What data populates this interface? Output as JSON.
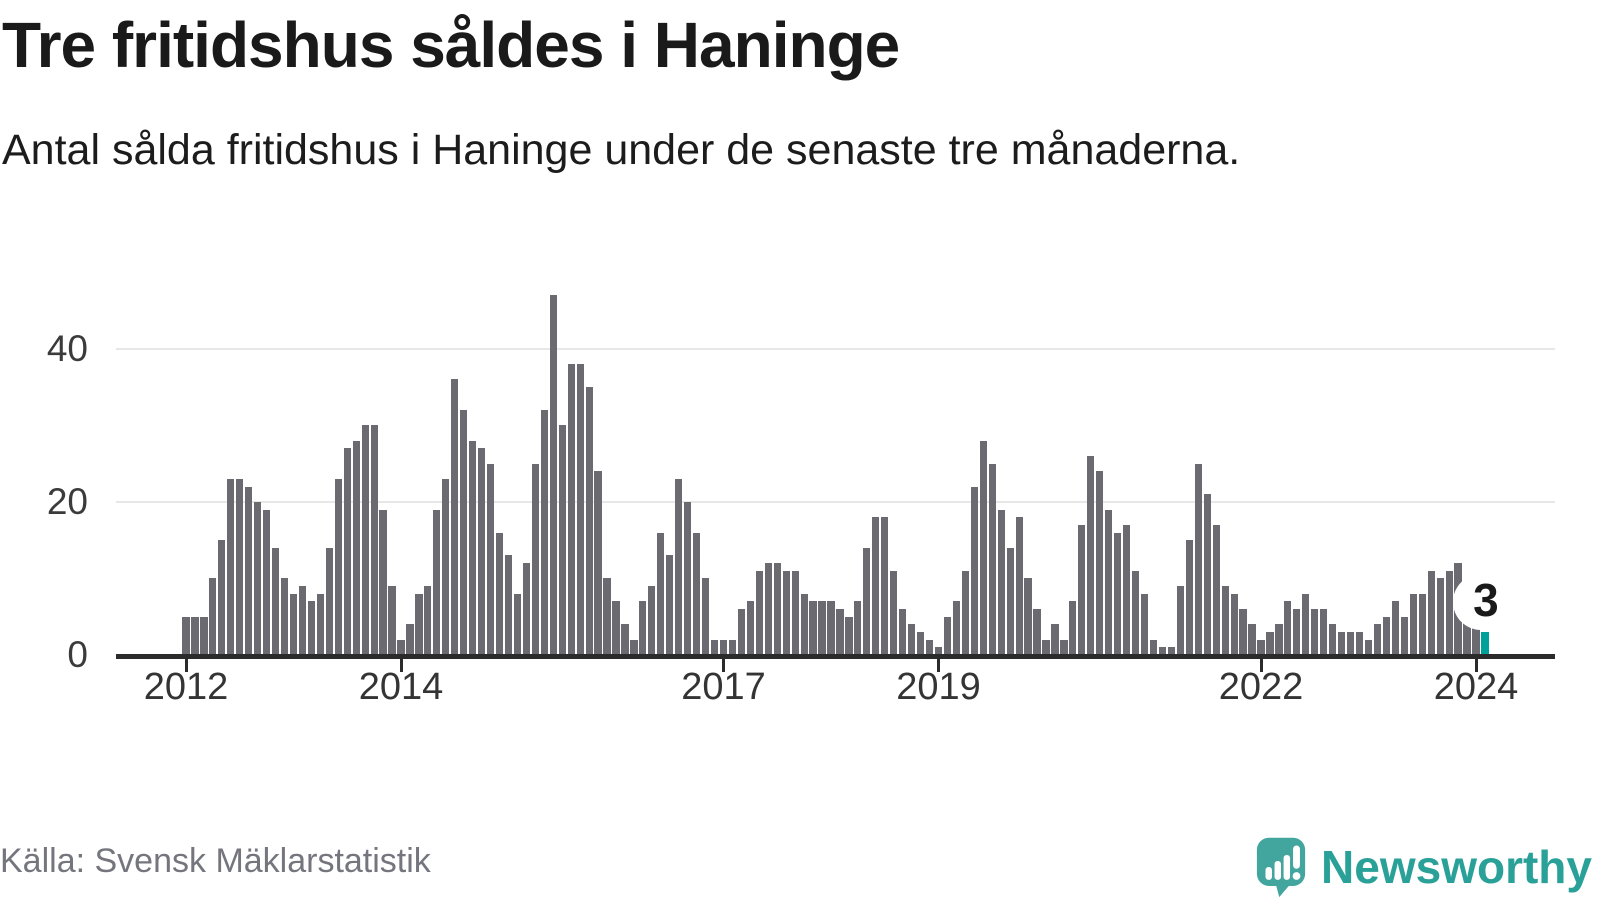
{
  "header": {
    "title": "Tre fritidshus såldes i Haninge",
    "subtitle": "Antal sålda fritidshus i Haninge under de senaste tre månaderna."
  },
  "footer": {
    "source": "Källa: Svensk Mäklarstatistik",
    "logo_text": "Newsworthy"
  },
  "colors": {
    "bar": "#6a6a70",
    "highlight_bar": "#00a19b",
    "gridline": "#e7e7e7",
    "axis": "#2b2b2b",
    "title_text": "#1a1a1a",
    "source_text": "#75757e",
    "logo_teal": "#2aa198",
    "background": "#ffffff"
  },
  "chart_data": {
    "type": "bar",
    "title": "Tre fritidshus såldes i Haninge",
    "subtitle": "Antal sålda fritidshus i Haninge under de senaste tre månaderna.",
    "x_unit": "month",
    "x_start": "2012-01",
    "x_end": "2024-02",
    "y_axis": {
      "label": "",
      "ticks": [
        0,
        20,
        40
      ],
      "range": [
        0,
        47
      ]
    },
    "x_axis": {
      "tick_years": [
        2012,
        2014,
        2017,
        2019,
        2022,
        2024
      ]
    },
    "grid": "horizontal",
    "legend": "none",
    "series_by_year": [
      {
        "year": 2012,
        "values": [
          5,
          5,
          5,
          10,
          15,
          23,
          23,
          22,
          20,
          19,
          14,
          10
        ]
      },
      {
        "year": 2013,
        "values": [
          8,
          9,
          7,
          8,
          14,
          23,
          27,
          28,
          30,
          30,
          19,
          9
        ]
      },
      {
        "year": 2014,
        "values": [
          2,
          4,
          8,
          9,
          19,
          23,
          36,
          32,
          28,
          27,
          25,
          16
        ]
      },
      {
        "year": 2015,
        "values": [
          13,
          8,
          12,
          25,
          32,
          47,
          30,
          38,
          38,
          35,
          24,
          10
        ]
      },
      {
        "year": 2016,
        "values": [
          7,
          4,
          2,
          7,
          9,
          16,
          13,
          23,
          20,
          16,
          10,
          2
        ]
      },
      {
        "year": 2017,
        "values": [
          2,
          2,
          6,
          7,
          11,
          12,
          12,
          11,
          11,
          8,
          7,
          7
        ]
      },
      {
        "year": 2018,
        "values": [
          7,
          6,
          5,
          7,
          14,
          18,
          18,
          11,
          6,
          4,
          3,
          2
        ]
      },
      {
        "year": 2019,
        "values": [
          1,
          5,
          7,
          11,
          22,
          28,
          25,
          19,
          14,
          18,
          10,
          6
        ]
      },
      {
        "year": 2020,
        "values": [
          2,
          4,
          2,
          7,
          17,
          26,
          24,
          19,
          16,
          17,
          11,
          8
        ]
      },
      {
        "year": 2021,
        "values": [
          2,
          1,
          1,
          9,
          15,
          25,
          21,
          17,
          9,
          8,
          6,
          4
        ]
      },
      {
        "year": 2022,
        "values": [
          2,
          3,
          4,
          7,
          6,
          8,
          6,
          6,
          4,
          3,
          3,
          3
        ]
      },
      {
        "year": 2023,
        "values": [
          2,
          4,
          5,
          7,
          5,
          8,
          8,
          11,
          10,
          11,
          12,
          8
        ]
      },
      {
        "year": 2024,
        "values": [
          5,
          3
        ]
      }
    ],
    "highlight_last": {
      "month": "2024-02",
      "value": 3,
      "label": "3"
    }
  }
}
